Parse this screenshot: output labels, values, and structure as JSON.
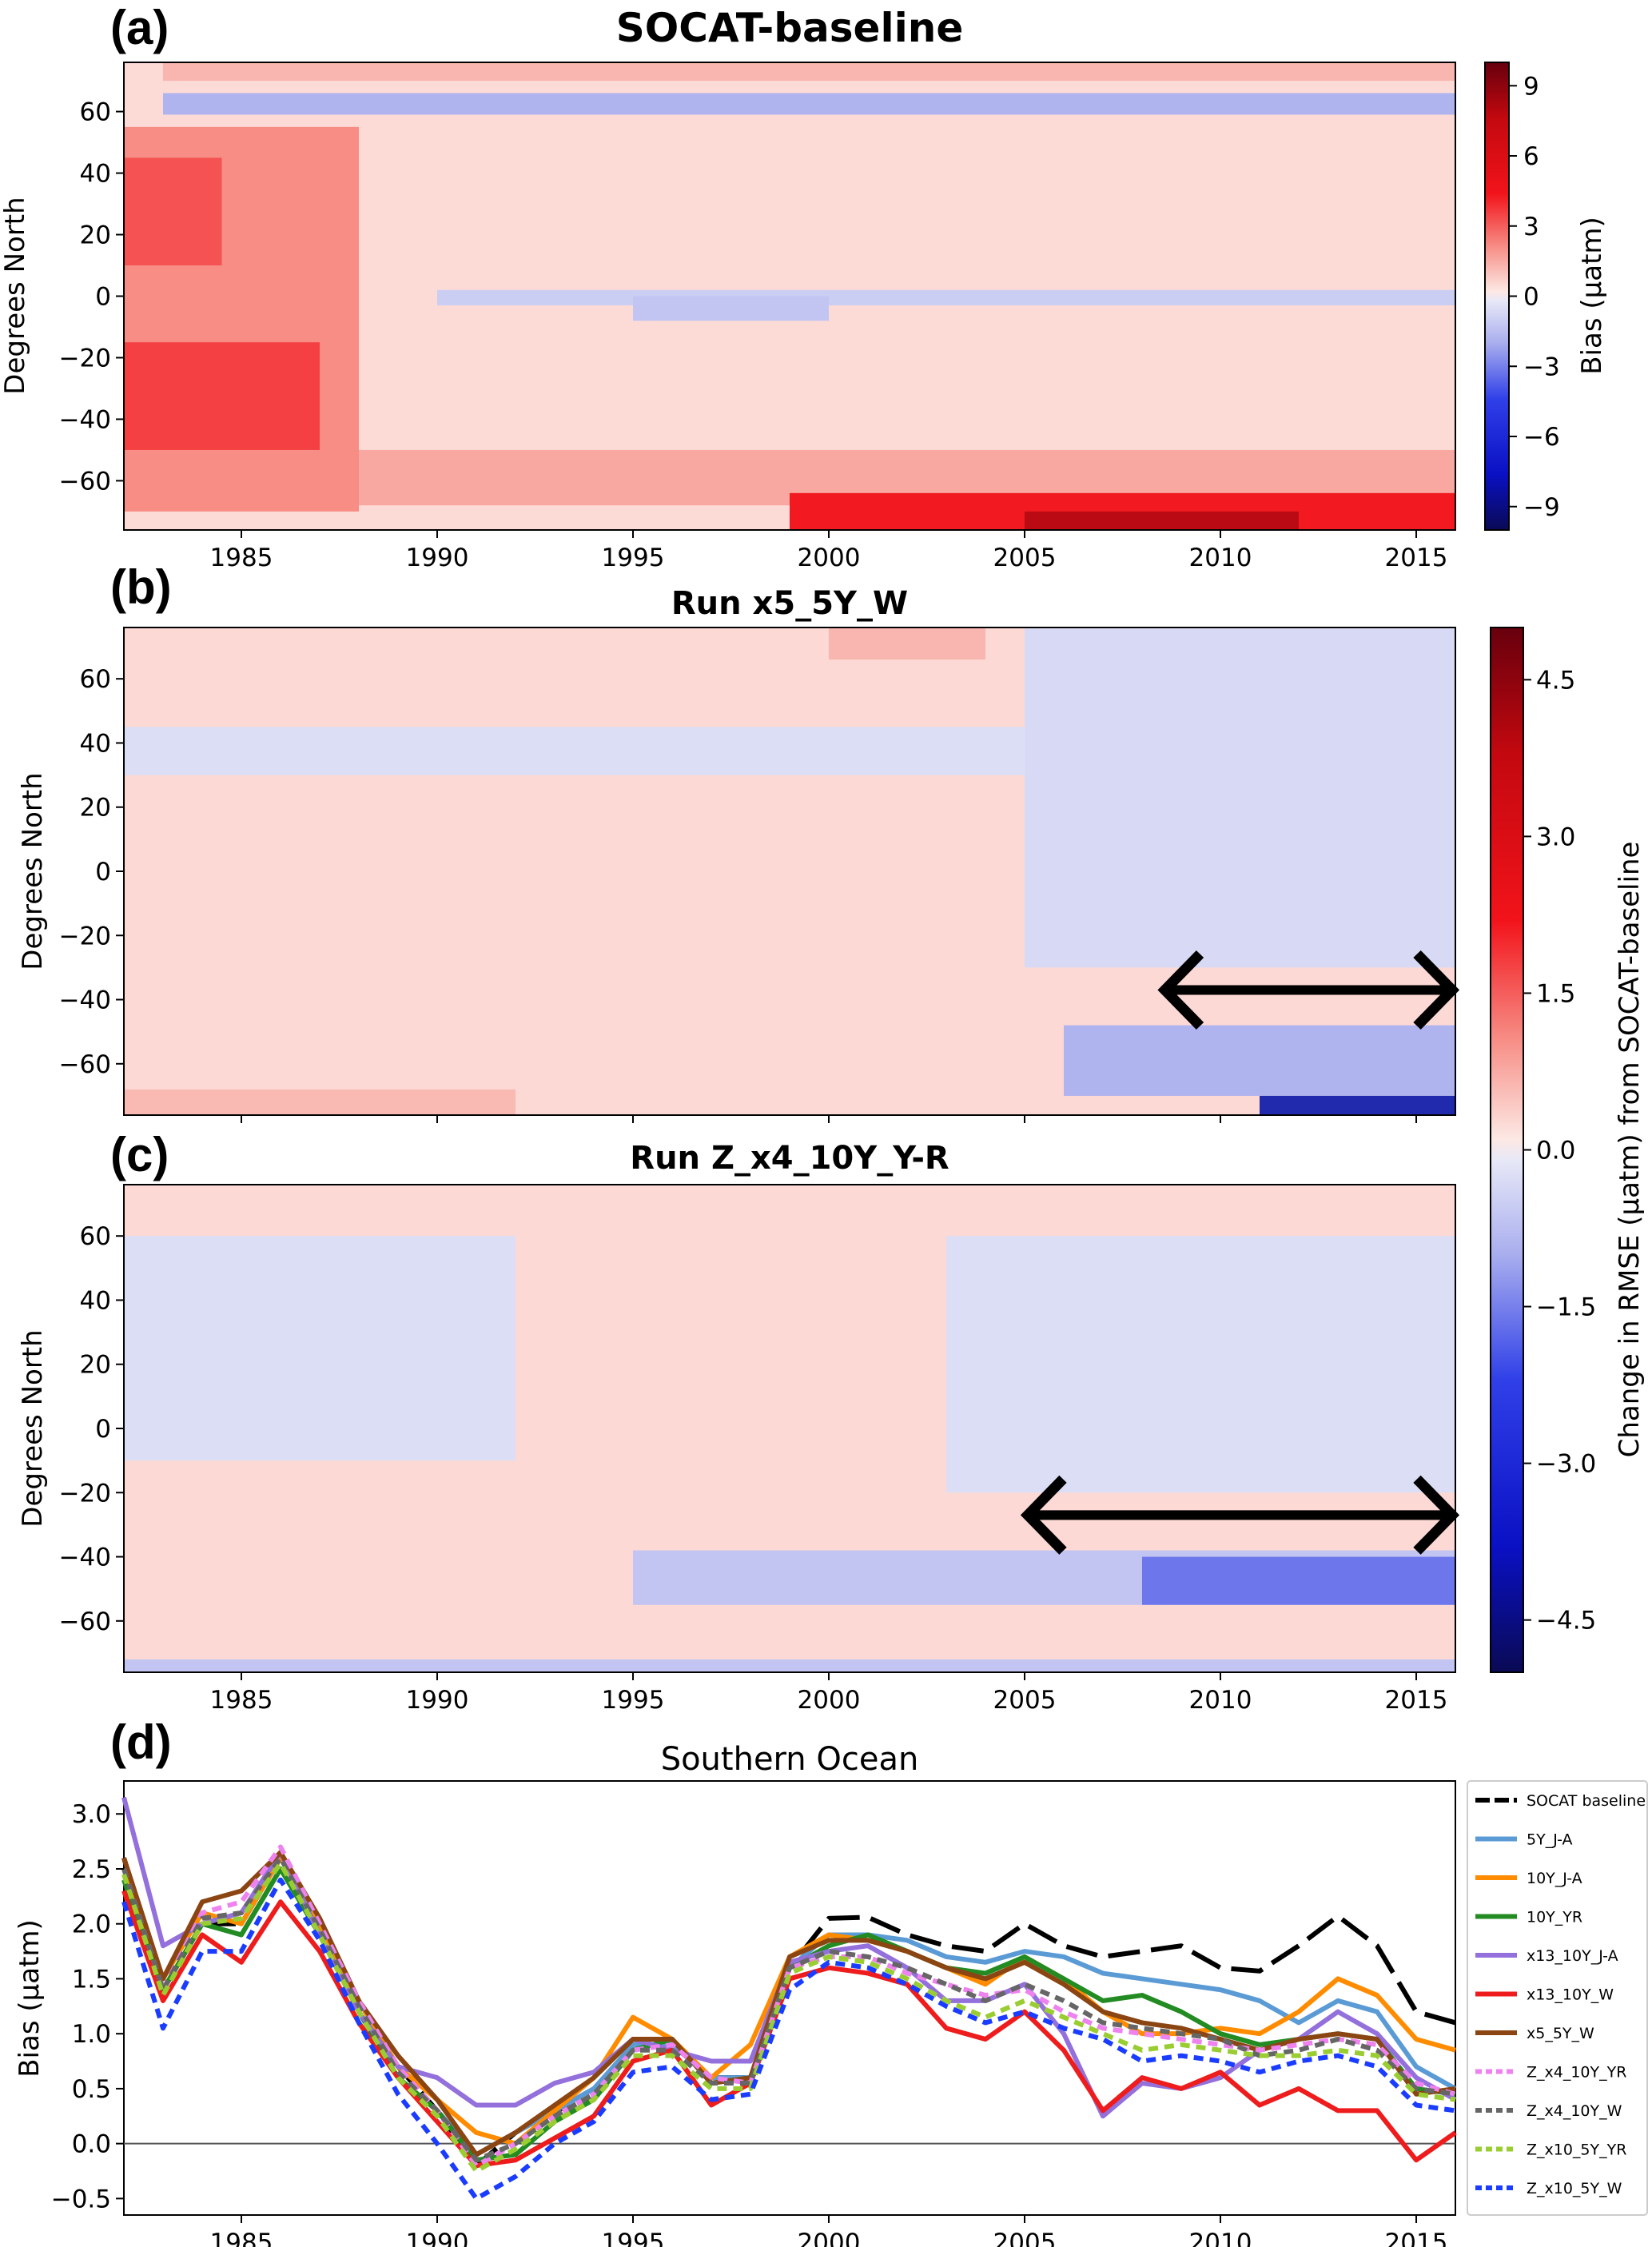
{
  "panel_letters": [
    "(a)",
    "(b)",
    "(c)",
    "(d)"
  ],
  "colors": {
    "deep_red": "#67000d",
    "red": "#e8141a",
    "light_red": "#f4a6a0",
    "pale_red": "#fbe1dc",
    "pale_blue": "#e2e4f6",
    "light_blue": "#b9bdef",
    "blue": "#3b46e6",
    "deep_blue": "#080a7a"
  },
  "chart_data": [
    {
      "type": "heatmap",
      "panel": "(a)",
      "title": "SOCAT-baseline",
      "ylabel": "Degrees North",
      "xlim": [
        1982,
        2016
      ],
      "ylim": [
        -76,
        76
      ],
      "xticks": [
        "1985",
        "1990",
        "1995",
        "2000",
        "2005",
        "2010",
        "2015"
      ],
      "yticks": [
        "60",
        "40",
        "20",
        "0",
        "−20",
        "−40",
        "−60"
      ],
      "colorbar": {
        "label": "Bias (μatm)",
        "range": [
          -10,
          10
        ],
        "ticks": [
          "9",
          "6",
          "3",
          "0",
          "−3",
          "−6",
          "−9"
        ]
      },
      "regions": [
        {
          "x": [
            1982,
            2016
          ],
          "y": [
            -76,
            76
          ],
          "value": 0.5
        },
        {
          "x": [
            1982,
            1988
          ],
          "y": [
            -70,
            55
          ],
          "value": 3.5
        },
        {
          "x": [
            1982,
            1984.5
          ],
          "y": [
            10,
            45
          ],
          "value": 5
        },
        {
          "x": [
            1982,
            1987
          ],
          "y": [
            -50,
            -15
          ],
          "value": 5.5
        },
        {
          "x": [
            1988,
            2016
          ],
          "y": [
            -68,
            -50
          ],
          "value": 2.5
        },
        {
          "x": [
            1999,
            2016
          ],
          "y": [
            -76,
            -64
          ],
          "value": 6.5
        },
        {
          "x": [
            2005,
            2012
          ],
          "y": [
            -76,
            -70
          ],
          "value": 8
        },
        {
          "x": [
            1983,
            2016
          ],
          "y": [
            70,
            76
          ],
          "value": 2
        },
        {
          "x": [
            1983,
            2016
          ],
          "y": [
            59,
            66
          ],
          "value": -3
        },
        {
          "x": [
            1990,
            2016
          ],
          "y": [
            -3,
            2
          ],
          "value": -1.5
        },
        {
          "x": [
            1995,
            2000
          ],
          "y": [
            -8,
            0
          ],
          "value": -2
        }
      ]
    },
    {
      "type": "heatmap",
      "panel": "(b)",
      "title": "Run x5_5Y_W",
      "title_color": "#8b4513",
      "ylabel": "Degrees North",
      "xlim": [
        1982,
        2016
      ],
      "ylim": [
        -76,
        76
      ],
      "yticks": [
        "60",
        "40",
        "20",
        "0",
        "−20",
        "−40",
        "−60"
      ],
      "regions": [
        {
          "x": [
            1982,
            2016
          ],
          "y": [
            -76,
            76
          ],
          "value": 0.3
        },
        {
          "x": [
            1982,
            2016
          ],
          "y": [
            30,
            45
          ],
          "value": -0.3
        },
        {
          "x": [
            2005,
            2016
          ],
          "y": [
            -30,
            76
          ],
          "value": -0.4
        },
        {
          "x": [
            2006,
            2016
          ],
          "y": [
            -70,
            -48
          ],
          "value": -1.5
        },
        {
          "x": [
            2011,
            2016
          ],
          "y": [
            -76,
            -70
          ],
          "value": -4
        },
        {
          "x": [
            2000,
            2004
          ],
          "y": [
            66,
            76
          ],
          "value": 1
        },
        {
          "x": [
            1982,
            1992
          ],
          "y": [
            -76,
            -68
          ],
          "value": 0.9
        }
      ],
      "annotation_arrow": {
        "x": [
          2008.5,
          2016
        ],
        "y": -37
      }
    },
    {
      "type": "heatmap",
      "panel": "(c)",
      "title": "Run Z_x4_10Y_Y-R",
      "title_color": "#ee82ee",
      "ylabel": "Degrees North",
      "xlim": [
        1982,
        2016
      ],
      "ylim": [
        -76,
        76
      ],
      "xticks": [
        "1985",
        "1990",
        "1995",
        "2000",
        "2005",
        "2010",
        "2015"
      ],
      "yticks": [
        "60",
        "40",
        "20",
        "0",
        "−20",
        "−40",
        "−60"
      ],
      "colorbar": {
        "label": "Change in RMSE (μatm) from SOCAT-baseline",
        "range": [
          -5,
          5
        ],
        "ticks": [
          "4.5",
          "3.0",
          "1.5",
          "0.0",
          "−1.5",
          "−3.0",
          "−4.5"
        ]
      },
      "regions": [
        {
          "x": [
            1982,
            2016
          ],
          "y": [
            -76,
            76
          ],
          "value": 0.3
        },
        {
          "x": [
            1982,
            1992
          ],
          "y": [
            -10,
            60
          ],
          "value": -0.3
        },
        {
          "x": [
            2003,
            2016
          ],
          "y": [
            -20,
            60
          ],
          "value": -0.3
        },
        {
          "x": [
            1995,
            2016
          ],
          "y": [
            -55,
            -38
          ],
          "value": -1
        },
        {
          "x": [
            2008,
            2016
          ],
          "y": [
            -55,
            -40
          ],
          "value": -2.5
        },
        {
          "x": [
            1982,
            2016
          ],
          "y": [
            -76,
            -72
          ],
          "value": -1
        }
      ],
      "annotation_arrow": {
        "x": [
          2005,
          2016
        ],
        "y": -27
      }
    },
    {
      "type": "line",
      "panel": "(d)",
      "title": "Southern Ocean",
      "ylabel": "Bias (μatm)",
      "xlim": [
        1982,
        2016
      ],
      "ylim": [
        -0.65,
        3.3
      ],
      "xticks": [
        "1985",
        "1990",
        "1995",
        "2000",
        "2005",
        "2010",
        "2015"
      ],
      "yticks": [
        "3.0",
        "2.5",
        "2.0",
        "1.5",
        "1.0",
        "0.5",
        "0.0",
        "−0.5"
      ],
      "x": [
        1982,
        1983,
        1984,
        1985,
        1986,
        1987,
        1988,
        1989,
        1990,
        1991,
        1992,
        1993,
        1994,
        1995,
        1996,
        1997,
        1998,
        1999,
        2000,
        2001,
        2002,
        2003,
        2004,
        2005,
        2006,
        2007,
        2008,
        2009,
        2010,
        2011,
        2012,
        2013,
        2014,
        2015,
        2016
      ],
      "series": [
        {
          "name": "SOCAT baseline",
          "color": "#000000",
          "dash": "40 14",
          "values": [
            2.6,
            1.4,
            2.0,
            2.0,
            2.6,
            2.0,
            1.3,
            0.7,
            0.3,
            -0.2,
            0.1,
            0.3,
            0.4,
            0.9,
            0.9,
            0.6,
            0.6,
            1.6,
            2.05,
            2.06,
            1.9,
            1.8,
            1.75,
            2.0,
            1.8,
            1.7,
            1.75,
            1.8,
            1.6,
            1.57,
            1.8,
            2.07,
            1.8,
            1.2,
            1.1
          ]
        },
        {
          "name": "5Y_J-A",
          "color": "#5b9bd5",
          "values": [
            2.4,
            1.4,
            2.0,
            1.9,
            2.5,
            1.9,
            1.2,
            0.6,
            0.3,
            -0.1,
            0.1,
            0.3,
            0.5,
            0.9,
            0.9,
            0.6,
            0.6,
            1.6,
            1.9,
            1.9,
            1.85,
            1.7,
            1.65,
            1.75,
            1.7,
            1.55,
            1.5,
            1.45,
            1.4,
            1.3,
            1.1,
            1.3,
            1.2,
            0.7,
            0.5
          ]
        },
        {
          "name": "10Y_J-A",
          "color": "#ff8c00",
          "values": [
            2.5,
            1.5,
            2.1,
            2.0,
            2.6,
            2.0,
            1.3,
            0.7,
            0.4,
            0.1,
            0.0,
            0.3,
            0.6,
            1.15,
            0.95,
            0.6,
            0.9,
            1.7,
            1.9,
            1.85,
            1.75,
            1.6,
            1.45,
            1.7,
            1.5,
            1.2,
            1.0,
            1.0,
            1.05,
            1.0,
            1.2,
            1.5,
            1.35,
            0.95,
            0.85
          ]
        },
        {
          "name": "10Y_YR",
          "color": "#228b22",
          "values": [
            2.4,
            1.4,
            2.0,
            1.9,
            2.5,
            1.9,
            1.2,
            0.6,
            0.3,
            -0.15,
            -0.1,
            0.2,
            0.4,
            0.85,
            0.95,
            0.55,
            0.6,
            1.6,
            1.8,
            1.9,
            1.75,
            1.6,
            1.55,
            1.7,
            1.5,
            1.3,
            1.35,
            1.2,
            1.0,
            0.9,
            0.95,
            1.0,
            0.95,
            0.5,
            0.45
          ]
        },
        {
          "name": "x13_10Y_J-A",
          "color": "#9370db",
          "values": [
            3.15,
            1.8,
            2.0,
            2.1,
            2.65,
            1.9,
            1.2,
            0.7,
            0.6,
            0.35,
            0.35,
            0.55,
            0.65,
            0.95,
            0.85,
            0.75,
            0.75,
            1.65,
            1.75,
            1.8,
            1.6,
            1.3,
            1.3,
            1.45,
            1.0,
            0.25,
            0.55,
            0.5,
            0.6,
            0.85,
            0.95,
            1.2,
            1.0,
            0.6,
            0.4
          ]
        },
        {
          "name": "x13_10Y_W",
          "color": "#ee1c1c",
          "values": [
            2.3,
            1.3,
            1.9,
            1.65,
            2.2,
            1.75,
            1.1,
            0.6,
            0.2,
            -0.2,
            -0.15,
            0.05,
            0.25,
            0.75,
            0.85,
            0.35,
            0.55,
            1.5,
            1.6,
            1.55,
            1.45,
            1.05,
            0.95,
            1.2,
            0.85,
            0.3,
            0.6,
            0.5,
            0.65,
            0.35,
            0.5,
            0.3,
            0.3,
            -0.15,
            0.1
          ]
        },
        {
          "name": "x5_5Y_W",
          "color": "#8b4513",
          "values": [
            2.6,
            1.5,
            2.2,
            2.3,
            2.65,
            2.05,
            1.3,
            0.8,
            0.4,
            -0.1,
            0.1,
            0.35,
            0.6,
            0.95,
            0.95,
            0.55,
            0.6,
            1.7,
            1.85,
            1.85,
            1.75,
            1.6,
            1.5,
            1.65,
            1.45,
            1.2,
            1.1,
            1.05,
            0.95,
            0.85,
            0.95,
            1.0,
            0.95,
            0.45,
            0.5
          ]
        },
        {
          "name": "Z_x4_10Y_YR",
          "color": "#ee82ee",
          "dash": "12 8",
          "values": [
            2.5,
            1.4,
            2.1,
            2.2,
            2.7,
            2.0,
            1.3,
            0.7,
            0.3,
            -0.2,
            0.0,
            0.25,
            0.45,
            0.85,
            0.9,
            0.6,
            0.55,
            1.6,
            1.7,
            1.7,
            1.55,
            1.45,
            1.35,
            1.4,
            1.2,
            1.05,
            1.0,
            0.95,
            0.9,
            0.85,
            0.9,
            0.95,
            0.9,
            0.55,
            0.45
          ]
        },
        {
          "name": "Z_x4_10Y_W",
          "color": "#666666",
          "dash": "12 8",
          "values": [
            2.5,
            1.4,
            2.05,
            2.1,
            2.6,
            1.95,
            1.25,
            0.65,
            0.3,
            -0.15,
            0.0,
            0.25,
            0.45,
            0.85,
            0.85,
            0.55,
            0.55,
            1.6,
            1.75,
            1.7,
            1.6,
            1.45,
            1.3,
            1.45,
            1.3,
            1.1,
            1.05,
            1.0,
            0.95,
            0.8,
            0.85,
            0.95,
            0.85,
            0.5,
            0.45
          ]
        },
        {
          "name": "Z_x10_5Y_YR",
          "color": "#9acd32",
          "dash": "12 8",
          "values": [
            2.45,
            1.35,
            2.0,
            2.05,
            2.55,
            1.9,
            1.2,
            0.6,
            0.25,
            -0.25,
            -0.05,
            0.2,
            0.4,
            0.8,
            0.8,
            0.5,
            0.5,
            1.55,
            1.7,
            1.65,
            1.5,
            1.3,
            1.15,
            1.3,
            1.15,
            1.0,
            0.85,
            0.9,
            0.85,
            0.8,
            0.8,
            0.85,
            0.8,
            0.45,
            0.4
          ]
        },
        {
          "name": "Z_x10_5Y_W",
          "color": "#1a3cff",
          "dash": "12 8",
          "values": [
            2.2,
            1.05,
            1.75,
            1.75,
            2.4,
            1.85,
            1.1,
            0.45,
            0.0,
            -0.5,
            -0.3,
            0.0,
            0.2,
            0.65,
            0.7,
            0.4,
            0.45,
            1.4,
            1.65,
            1.6,
            1.45,
            1.25,
            1.1,
            1.2,
            1.05,
            0.95,
            0.75,
            0.8,
            0.75,
            0.65,
            0.75,
            0.8,
            0.7,
            0.35,
            0.3
          ]
        }
      ]
    }
  ]
}
